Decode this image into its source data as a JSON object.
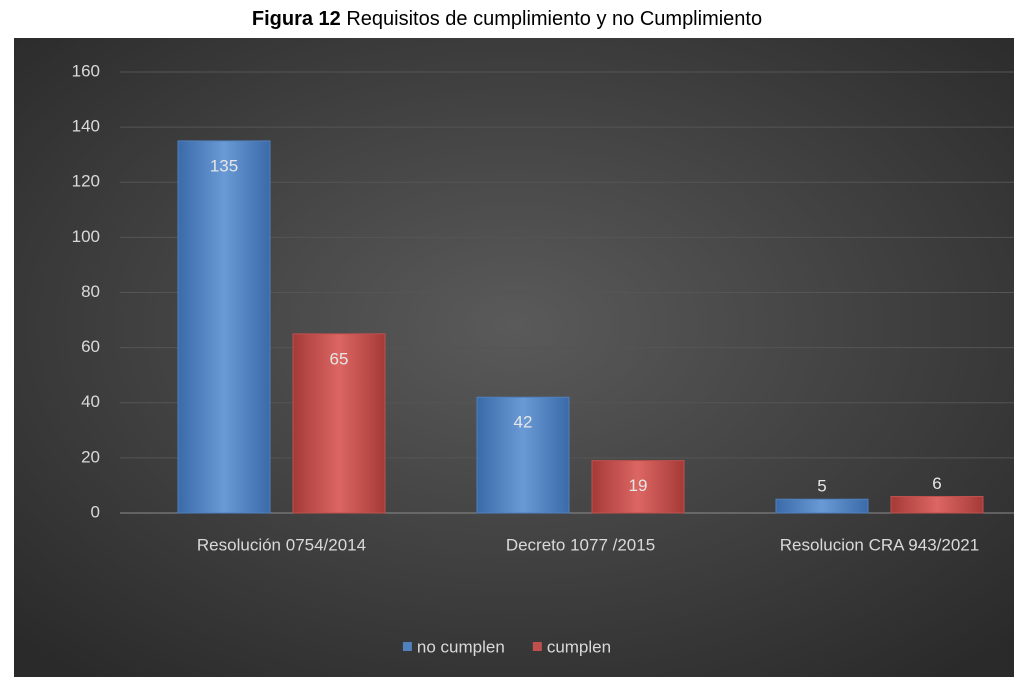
{
  "chart_data": {
    "type": "bar",
    "figure_label": "Figura 12",
    "title": "Requisitos de cumplimiento y no Cumplimiento",
    "categories": [
      "Resolución 0754/2014",
      "Decreto 1077 /2015",
      "Resolucion CRA 943/2021"
    ],
    "series": [
      {
        "name": "no cumplen",
        "color": "#4f81bd",
        "values": [
          135,
          42,
          5
        ]
      },
      {
        "name": "cumplen",
        "color": "#c0504d",
        "values": [
          65,
          19,
          6
        ]
      }
    ],
    "ylim": [
      0,
      160
    ],
    "yticks": [
      0,
      20,
      40,
      60,
      80,
      100,
      120,
      140,
      160
    ],
    "grid": true,
    "legend": "bottom"
  }
}
